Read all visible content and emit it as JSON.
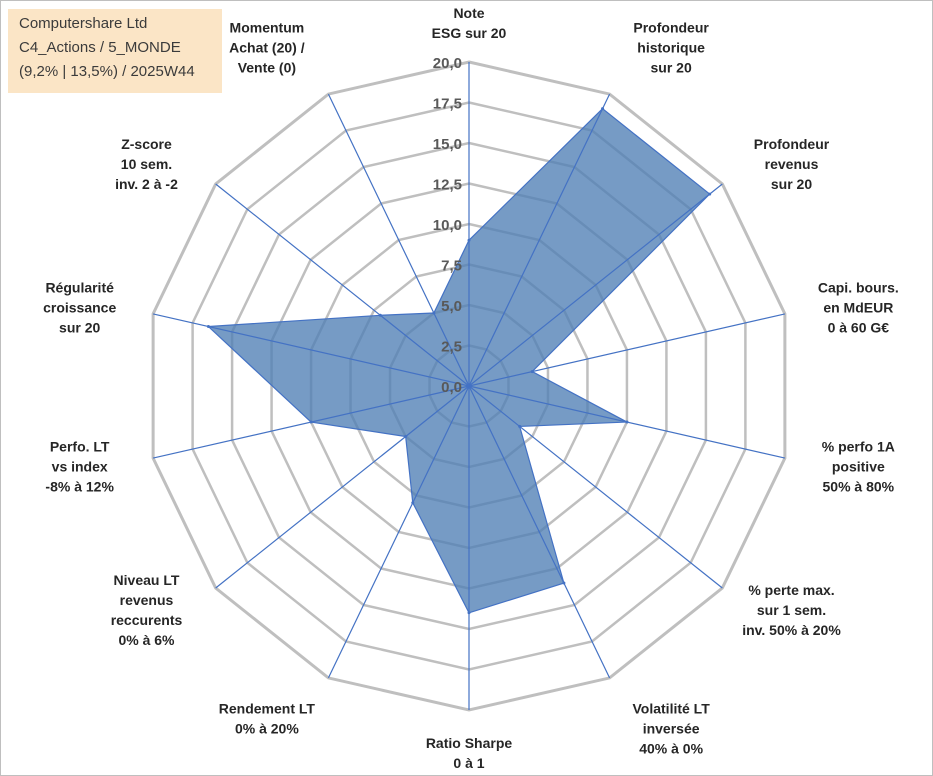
{
  "title_box": {
    "line1": "Computershare Ltd",
    "line2": "C4_Actions / 5_MONDE",
    "line3": "(9,2% | 13,5%) / 2025W44"
  },
  "colors": {
    "fill": "#4f7fb5",
    "stroke": "#4472c4",
    "grid": "#bfbfbf",
    "spoke": "#4472c4",
    "title_bg": "#fbe5c6"
  },
  "chart_data": {
    "type": "radar",
    "r_range": [
      0,
      20
    ],
    "r_ticks": [
      "0,0",
      "2,5",
      "5,0",
      "7,5",
      "10,0",
      "12,5",
      "15,0",
      "17,5",
      "20,0"
    ],
    "axes": [
      [
        "Note",
        "ESG sur 20"
      ],
      [
        "Profondeur",
        "historique",
        "sur 20"
      ],
      [
        "Profondeur",
        "revenus",
        "sur 20"
      ],
      [
        "Capi. bours.",
        "en MdEUR",
        "0 à 60 G€"
      ],
      [
        "% perfo 1A",
        "positive",
        "50% à 80%"
      ],
      [
        "% perte max.",
        "sur 1 sem.",
        "inv. 50% à 20%"
      ],
      [
        "Volatilité LT",
        "inversée",
        "40% à 0%"
      ],
      [
        "Ratio Sharpe",
        "0 à 1"
      ],
      [
        "Rendement LT",
        "0% à 20%"
      ],
      [
        "Niveau LT",
        "revenus",
        "reccurents",
        "0% à 6%"
      ],
      [
        "Perfo. LT",
        "vs index",
        "-8% à 12%"
      ],
      [
        "Régularité",
        "croissance",
        "sur 20"
      ],
      [
        "Z-score",
        "10 sem.",
        "inv. 2 à -2"
      ],
      [
        "Momentum",
        "Achat (20) /",
        "Vente (0)"
      ]
    ],
    "values": [
      9.0,
      19.0,
      19.0,
      4.0,
      10.0,
      4.0,
      13.5,
      14.0,
      8.0,
      5.0,
      10.0,
      16.5,
      7.0,
      5.0
    ],
    "grid": true,
    "legend": "none"
  }
}
